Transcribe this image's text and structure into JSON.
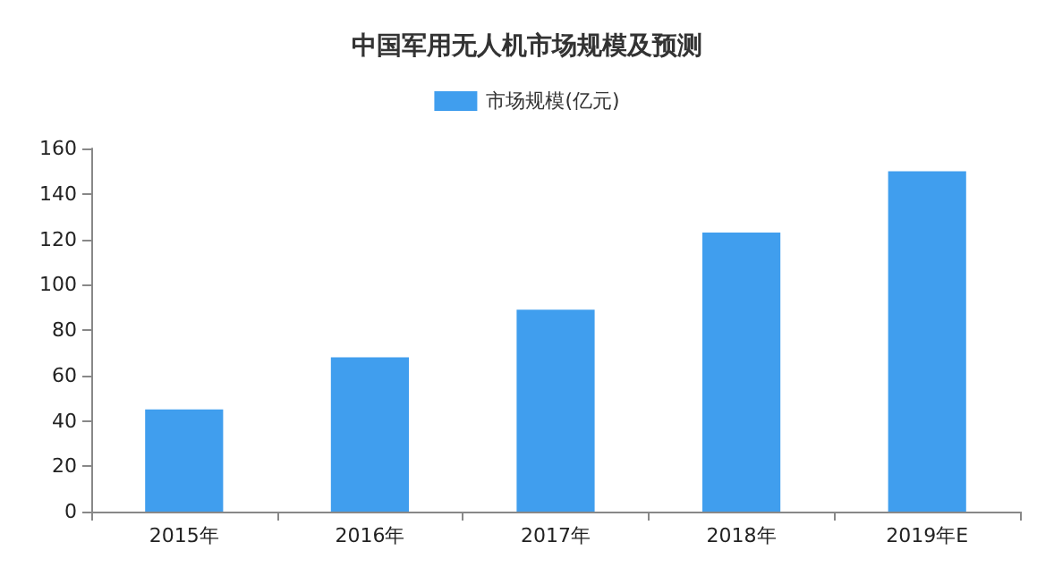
{
  "chart_data": {
    "type": "bar",
    "title": "中国军用无人机市场规模及预测",
    "categories": [
      "2015年",
      "2016年",
      "2017年",
      "2018年",
      "2019年E"
    ],
    "series": [
      {
        "name": "市场规模(亿元)",
        "color": "#409eee",
        "values": [
          45,
          68,
          89,
          123,
          150
        ]
      }
    ],
    "ylim": [
      0,
      160
    ],
    "yticks": [
      0,
      20,
      40,
      60,
      80,
      100,
      120,
      140,
      160
    ],
    "grid": false,
    "legend": "top"
  }
}
